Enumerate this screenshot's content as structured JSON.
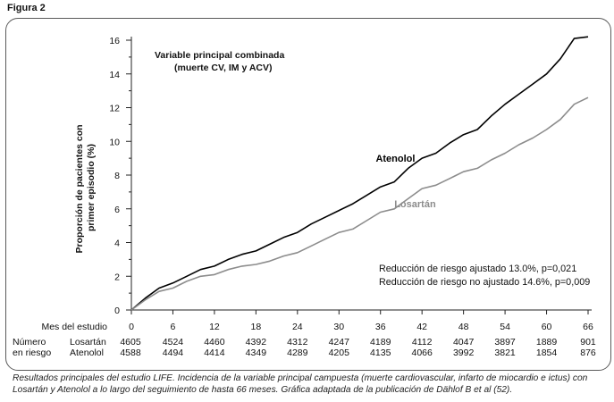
{
  "figure_label": "Figura 2",
  "chart_data": {
    "type": "line",
    "title": "Variable principal combinada",
    "subtitle": "(muerte CV, IM y ACV)",
    "ylabel_line1": "Proporción de pacientes con",
    "ylabel_line2": "primer episodio (%)",
    "xlabel": "Mes del estudio",
    "ylim": [
      0,
      16
    ],
    "xlim": [
      0,
      66
    ],
    "yticks": [
      0,
      2,
      4,
      6,
      8,
      10,
      12,
      14,
      16
    ],
    "xticks": [
      0,
      6,
      12,
      18,
      24,
      30,
      36,
      42,
      48,
      54,
      60,
      66
    ],
    "series": [
      {
        "name": "Atenolol",
        "color": "#000000",
        "x": [
          0,
          2,
          4,
          6,
          8,
          10,
          12,
          14,
          16,
          18,
          20,
          22,
          24,
          26,
          28,
          30,
          32,
          34,
          36,
          38,
          40,
          42,
          44,
          46,
          48,
          50,
          52,
          54,
          56,
          58,
          60,
          62,
          64,
          66
        ],
        "values": [
          0,
          0.7,
          1.3,
          1.6,
          2.0,
          2.4,
          2.6,
          3.0,
          3.3,
          3.5,
          3.9,
          4.3,
          4.6,
          5.1,
          5.5,
          5.9,
          6.3,
          6.8,
          7.3,
          7.6,
          8.4,
          9.0,
          9.3,
          9.9,
          10.4,
          10.7,
          11.5,
          12.2,
          12.8,
          13.4,
          14.0,
          14.9,
          16.1,
          16.2
        ]
      },
      {
        "name": "Losartán",
        "color": "#8c8c8c",
        "x": [
          0,
          2,
          4,
          6,
          8,
          10,
          12,
          14,
          16,
          18,
          20,
          22,
          24,
          26,
          28,
          30,
          32,
          34,
          36,
          38,
          40,
          42,
          44,
          46,
          48,
          50,
          52,
          54,
          56,
          58,
          60,
          62,
          64,
          66
        ],
        "values": [
          0,
          0.6,
          1.1,
          1.3,
          1.7,
          2.0,
          2.1,
          2.4,
          2.6,
          2.7,
          2.9,
          3.2,
          3.4,
          3.8,
          4.2,
          4.6,
          4.8,
          5.3,
          5.8,
          6.0,
          6.6,
          7.2,
          7.4,
          7.8,
          8.2,
          8.4,
          8.9,
          9.3,
          9.8,
          10.2,
          10.7,
          11.3,
          12.2,
          12.6
        ]
      }
    ],
    "annotations": [
      "Reducción de riesgo ajustado 13.0%, p=0,021",
      "Reducción de riesgo no ajustado 14.6%, p=0,009"
    ],
    "at_risk": {
      "header_line1": "Número",
      "header_line2": "en riesgo",
      "rows": [
        {
          "group": "Losartán",
          "values": [
            "4605",
            "4524",
            "4460",
            "4392",
            "4312",
            "4247",
            "4189",
            "4112",
            "4047",
            "3897",
            "1889",
            "901"
          ]
        },
        {
          "group": "Atenolol",
          "values": [
            "4588",
            "4494",
            "4414",
            "4349",
            "4289",
            "4205",
            "4135",
            "4066",
            "3992",
            "3821",
            "1854",
            "876"
          ]
        }
      ]
    }
  },
  "caption": "Resultados principales del estudio LIFE. Incidencia de la variable principal campuesta (muerte cardiovascular, infarto de miocardio e ictus) con Losartán y Atenolol a lo largo del seguimiento de hasta 66 meses. Gráfica adaptada de la publicación de Dählof B et al (52)."
}
